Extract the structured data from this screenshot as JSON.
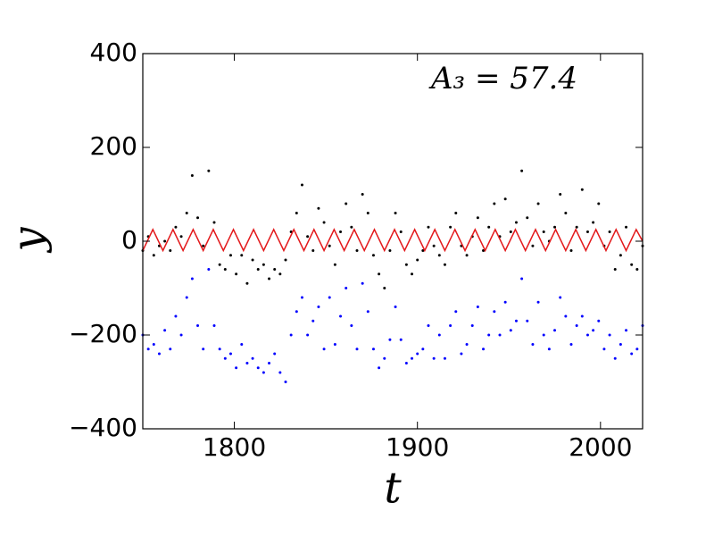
{
  "chart_data": {
    "type": "scatter",
    "annotation": "A₃ = 57.4",
    "x_label": "t",
    "y_label": "y",
    "xlim": [
      1750,
      2023
    ],
    "ylim": [
      -400,
      400
    ],
    "xticks": [
      1800,
      1900,
      2000
    ],
    "yticks": [
      {
        "value": -400,
        "label": "−400"
      },
      {
        "value": -200,
        "label": "−200"
      },
      0,
      200,
      400
    ],
    "series": [
      {
        "color": "#000000",
        "style": "dots",
        "x": [
          1750,
          1753,
          1756,
          1759,
          1762,
          1765,
          1768,
          1771,
          1774,
          1777,
          1780,
          1783,
          1786,
          1789,
          1792,
          1795,
          1798,
          1801,
          1804,
          1807,
          1810,
          1813,
          1816,
          1819,
          1822,
          1825,
          1828,
          1831,
          1834,
          1837,
          1840,
          1843,
          1846,
          1849,
          1852,
          1855,
          1858,
          1861,
          1864,
          1867,
          1870,
          1873,
          1876,
          1879,
          1882,
          1885,
          1888,
          1891,
          1894,
          1897,
          1900,
          1903,
          1906,
          1909,
          1912,
          1915,
          1918,
          1921,
          1924,
          1927,
          1930,
          1933,
          1936,
          1939,
          1942,
          1945,
          1948,
          1951,
          1954,
          1957,
          1960,
          1963,
          1966,
          1969,
          1972,
          1975,
          1978,
          1981,
          1984,
          1987,
          1990,
          1993,
          1996,
          1999,
          2002,
          2005,
          2008,
          2011,
          2014,
          2017,
          2020,
          2023
        ],
        "values": [
          -20,
          10,
          -30,
          -10,
          0,
          -20,
          30,
          10,
          60,
          140,
          50,
          -10,
          150,
          40,
          -50,
          -60,
          -30,
          -70,
          -30,
          -90,
          -40,
          -60,
          -50,
          -80,
          -60,
          -70,
          -40,
          20,
          60,
          120,
          10,
          -20,
          70,
          40,
          -10,
          -50,
          20,
          80,
          30,
          -20,
          100,
          60,
          -30,
          -70,
          -100,
          -20,
          60,
          20,
          -50,
          -70,
          -40,
          -20,
          30,
          -10,
          -30,
          -50,
          30,
          60,
          -10,
          -30,
          10,
          50,
          -20,
          30,
          80,
          10,
          90,
          20,
          40,
          150,
          50,
          -10,
          80,
          20,
          0,
          30,
          100,
          60,
          -20,
          30,
          110,
          20,
          40,
          80,
          -10,
          20,
          -60,
          -30,
          30,
          -50,
          -60,
          -10
        ]
      },
      {
        "color": "#0000ff",
        "style": "dots",
        "x": [
          1750,
          1753,
          1756,
          1759,
          1762,
          1765,
          1768,
          1771,
          1774,
          1777,
          1780,
          1783,
          1786,
          1789,
          1792,
          1795,
          1798,
          1801,
          1804,
          1807,
          1810,
          1813,
          1816,
          1819,
          1822,
          1825,
          1828,
          1831,
          1834,
          1837,
          1840,
          1843,
          1846,
          1849,
          1852,
          1855,
          1858,
          1861,
          1864,
          1867,
          1870,
          1873,
          1876,
          1879,
          1882,
          1885,
          1888,
          1891,
          1894,
          1897,
          1900,
          1903,
          1906,
          1909,
          1912,
          1915,
          1918,
          1921,
          1924,
          1927,
          1930,
          1933,
          1936,
          1939,
          1942,
          1945,
          1948,
          1951,
          1954,
          1957,
          1960,
          1963,
          1966,
          1969,
          1972,
          1975,
          1978,
          1981,
          1984,
          1987,
          1990,
          1993,
          1996,
          1999,
          2002,
          2005,
          2008,
          2011,
          2014,
          2017,
          2020,
          2023
        ],
        "values": [
          -200,
          -230,
          -220,
          -240,
          -190,
          -230,
          -160,
          -200,
          -120,
          -80,
          -180,
          -230,
          -60,
          -180,
          -230,
          -250,
          -240,
          -270,
          -220,
          -260,
          -250,
          -270,
          -280,
          -260,
          -240,
          -280,
          -300,
          -200,
          -150,
          -120,
          -200,
          -170,
          -140,
          -230,
          -120,
          -220,
          -160,
          -100,
          -180,
          -230,
          -90,
          -150,
          -230,
          -270,
          -250,
          -210,
          -140,
          -210,
          -260,
          -250,
          -240,
          -230,
          -180,
          -250,
          -200,
          -250,
          -180,
          -150,
          -240,
          -220,
          -180,
          -140,
          -230,
          -200,
          -150,
          -200,
          -130,
          -190,
          -170,
          -80,
          -170,
          -220,
          -130,
          -200,
          -230,
          -190,
          -120,
          -160,
          -220,
          -180,
          -160,
          -200,
          -190,
          -170,
          -230,
          -200,
          -250,
          -220,
          -190,
          -240,
          -230,
          -180
        ]
      },
      {
        "color": "#e31a1c",
        "style": "line",
        "x": [
          1750,
          1755.5,
          1761,
          1766.5,
          1772,
          1777.5,
          1783,
          1788.5,
          1794,
          1799.5,
          1805,
          1810.5,
          1816,
          1821.5,
          1827,
          1832.5,
          1838,
          1843.5,
          1849,
          1854.5,
          1860,
          1865.5,
          1871,
          1876.5,
          1882,
          1887.5,
          1893,
          1898.5,
          1904,
          1909.5,
          1915,
          1920.5,
          1926,
          1931.5,
          1937,
          1942.5,
          1948,
          1953.5,
          1959,
          1964.5,
          1970,
          1975.5,
          1981,
          1986.5,
          1992,
          1997.5,
          2003,
          2008.5,
          2014,
          2019.5,
          2023
        ],
        "values": [
          -20,
          25,
          -20,
          25,
          -20,
          25,
          -20,
          25,
          -20,
          25,
          -20,
          25,
          -20,
          25,
          -20,
          25,
          -20,
          25,
          -20,
          25,
          -20,
          25,
          -20,
          25,
          -20,
          25,
          -20,
          25,
          -20,
          25,
          -20,
          25,
          -20,
          25,
          -20,
          25,
          -20,
          25,
          -20,
          25,
          -20,
          25,
          -20,
          25,
          -20,
          25,
          -20,
          25,
          -20,
          25,
          0
        ]
      }
    ]
  }
}
